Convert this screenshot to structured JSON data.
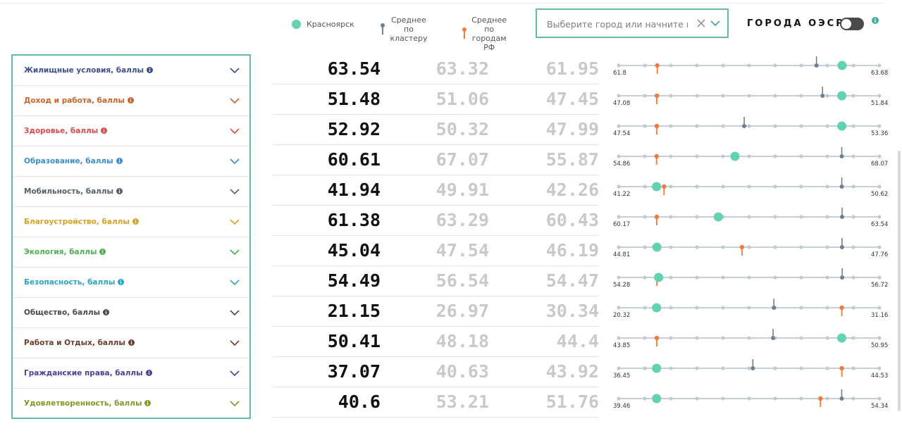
{
  "legend": {
    "city": "Красноярск",
    "cluster": "Среднее по\nкластеру",
    "rf": "Среднее по\nгородам РФ"
  },
  "search": {
    "placeholder": "Выберите город или начните печа"
  },
  "oecd": {
    "label": "ГОРОДА ОЭСР",
    "enabled": false
  },
  "colors": {
    "city": "#62d2b0",
    "cluster": "#6f7f93",
    "rf": "#ef7a3c",
    "panel_border": "#68b8ab"
  },
  "rows": [
    {
      "label": "Жилищные условия, баллы",
      "color": "#3d4f8f",
      "value": "63.54",
      "cluster": "63.32",
      "rf": "61.95",
      "min": "61.8",
      "max": "63.68"
    },
    {
      "label": "Доход и работа, баллы",
      "color": "#c9642a",
      "value": "51.48",
      "cluster": "51.06",
      "rf": "47.45",
      "min": "47.08",
      "max": "51.84"
    },
    {
      "label": "Здоровье, баллы",
      "color": "#d94a4a",
      "value": "52.92",
      "cluster": "50.32",
      "rf": "47.99",
      "min": "47.54",
      "max": "53.36"
    },
    {
      "label": "Образование, баллы",
      "color": "#3b8ec9",
      "value": "60.61",
      "cluster": "67.07",
      "rf": "55.87",
      "min": "54.86",
      "max": "68.07"
    },
    {
      "label": "Мобильность, баллы",
      "color": "#55606e",
      "value": "41.94",
      "cluster": "49.91",
      "rf": "42.26",
      "min": "41.22",
      "max": "50.62"
    },
    {
      "label": "Благоустройство, баллы",
      "color": "#d6a21f",
      "value": "61.38",
      "cluster": "63.29",
      "rf": "60.43",
      "min": "60.17",
      "max": "63.54"
    },
    {
      "label": "Экология, баллы",
      "color": "#4caf50",
      "value": "45.04",
      "cluster": "47.54",
      "rf": "46.19",
      "min": "44.81",
      "max": "47.76"
    },
    {
      "label": "Безопасность, баллы",
      "color": "#2ba5c4",
      "value": "54.49",
      "cluster": "56.54",
      "rf": "54.47",
      "min": "54.28",
      "max": "56.72"
    },
    {
      "label": "Общество, баллы",
      "color": "#4a4a4a",
      "value": "21.15",
      "cluster": "26.97",
      "rf": "30.34",
      "min": "20.32",
      "max": "31.16"
    },
    {
      "label": "Работа и Отдых, баллы",
      "color": "#6b3f2c",
      "value": "50.41",
      "cluster": "48.18",
      "rf": "44.4",
      "min": "43.85",
      "max": "50.95"
    },
    {
      "label": "Гражданские права, баллы",
      "color": "#4b3f95",
      "value": "37.07",
      "cluster": "40.63",
      "rf": "43.92",
      "min": "36.45",
      "max": "44.53"
    },
    {
      "label": "Удовлетворенность, баллы",
      "color": "#7f9a26",
      "value": "40.6",
      "cluster": "53.21",
      "rf": "51.76",
      "min": "39.46",
      "max": "54.34"
    }
  ]
}
